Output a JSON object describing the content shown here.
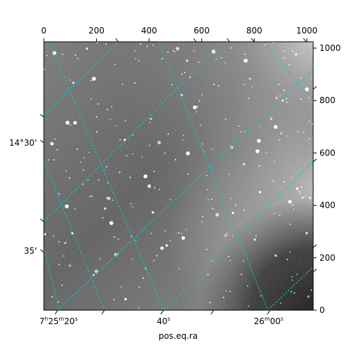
{
  "figure": {
    "xlabel": "pos.eq.ra",
    "grid_color": "#00cccc",
    "image_colormap": "gray",
    "pixel_axes": {
      "top_ticks": [
        "0",
        "200",
        "400",
        "600",
        "800",
        "1000"
      ],
      "right_ticks": [
        "0",
        "200",
        "400",
        "600",
        "800",
        "1000"
      ]
    },
    "world_axes": {
      "bottom_ticks": [
        {
          "h": "7",
          "m": "25",
          "s": "20",
          "label": "7h25m20s"
        },
        {
          "label": "40s",
          "sec": "40",
          "unit": "s"
        },
        {
          "label": "26m00s",
          "m": "26",
          "sec": "00",
          "unit": "s"
        }
      ],
      "left_ticks": [
        "14°30'",
        "35'"
      ]
    }
  }
}
